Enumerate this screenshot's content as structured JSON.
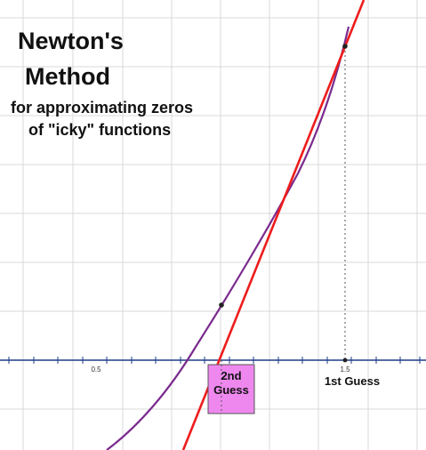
{
  "title": {
    "line1": "Newton's",
    "line2": "Method",
    "line3": "for approximating zeros",
    "line4": "of \"icky\" functions"
  },
  "axis": {
    "tick_labels": [
      "0.5",
      "1.5"
    ]
  },
  "labels": {
    "first_guess": "1st Guess",
    "second_guess_line1": "2nd",
    "second_guess_line2": "Guess"
  },
  "colors": {
    "curve": "#7a2a8e",
    "tangent": "#ee1c1c",
    "guess_box": "#ee88ee",
    "grid": "#d9d9d9",
    "axis": "#1f3b8a"
  }
}
